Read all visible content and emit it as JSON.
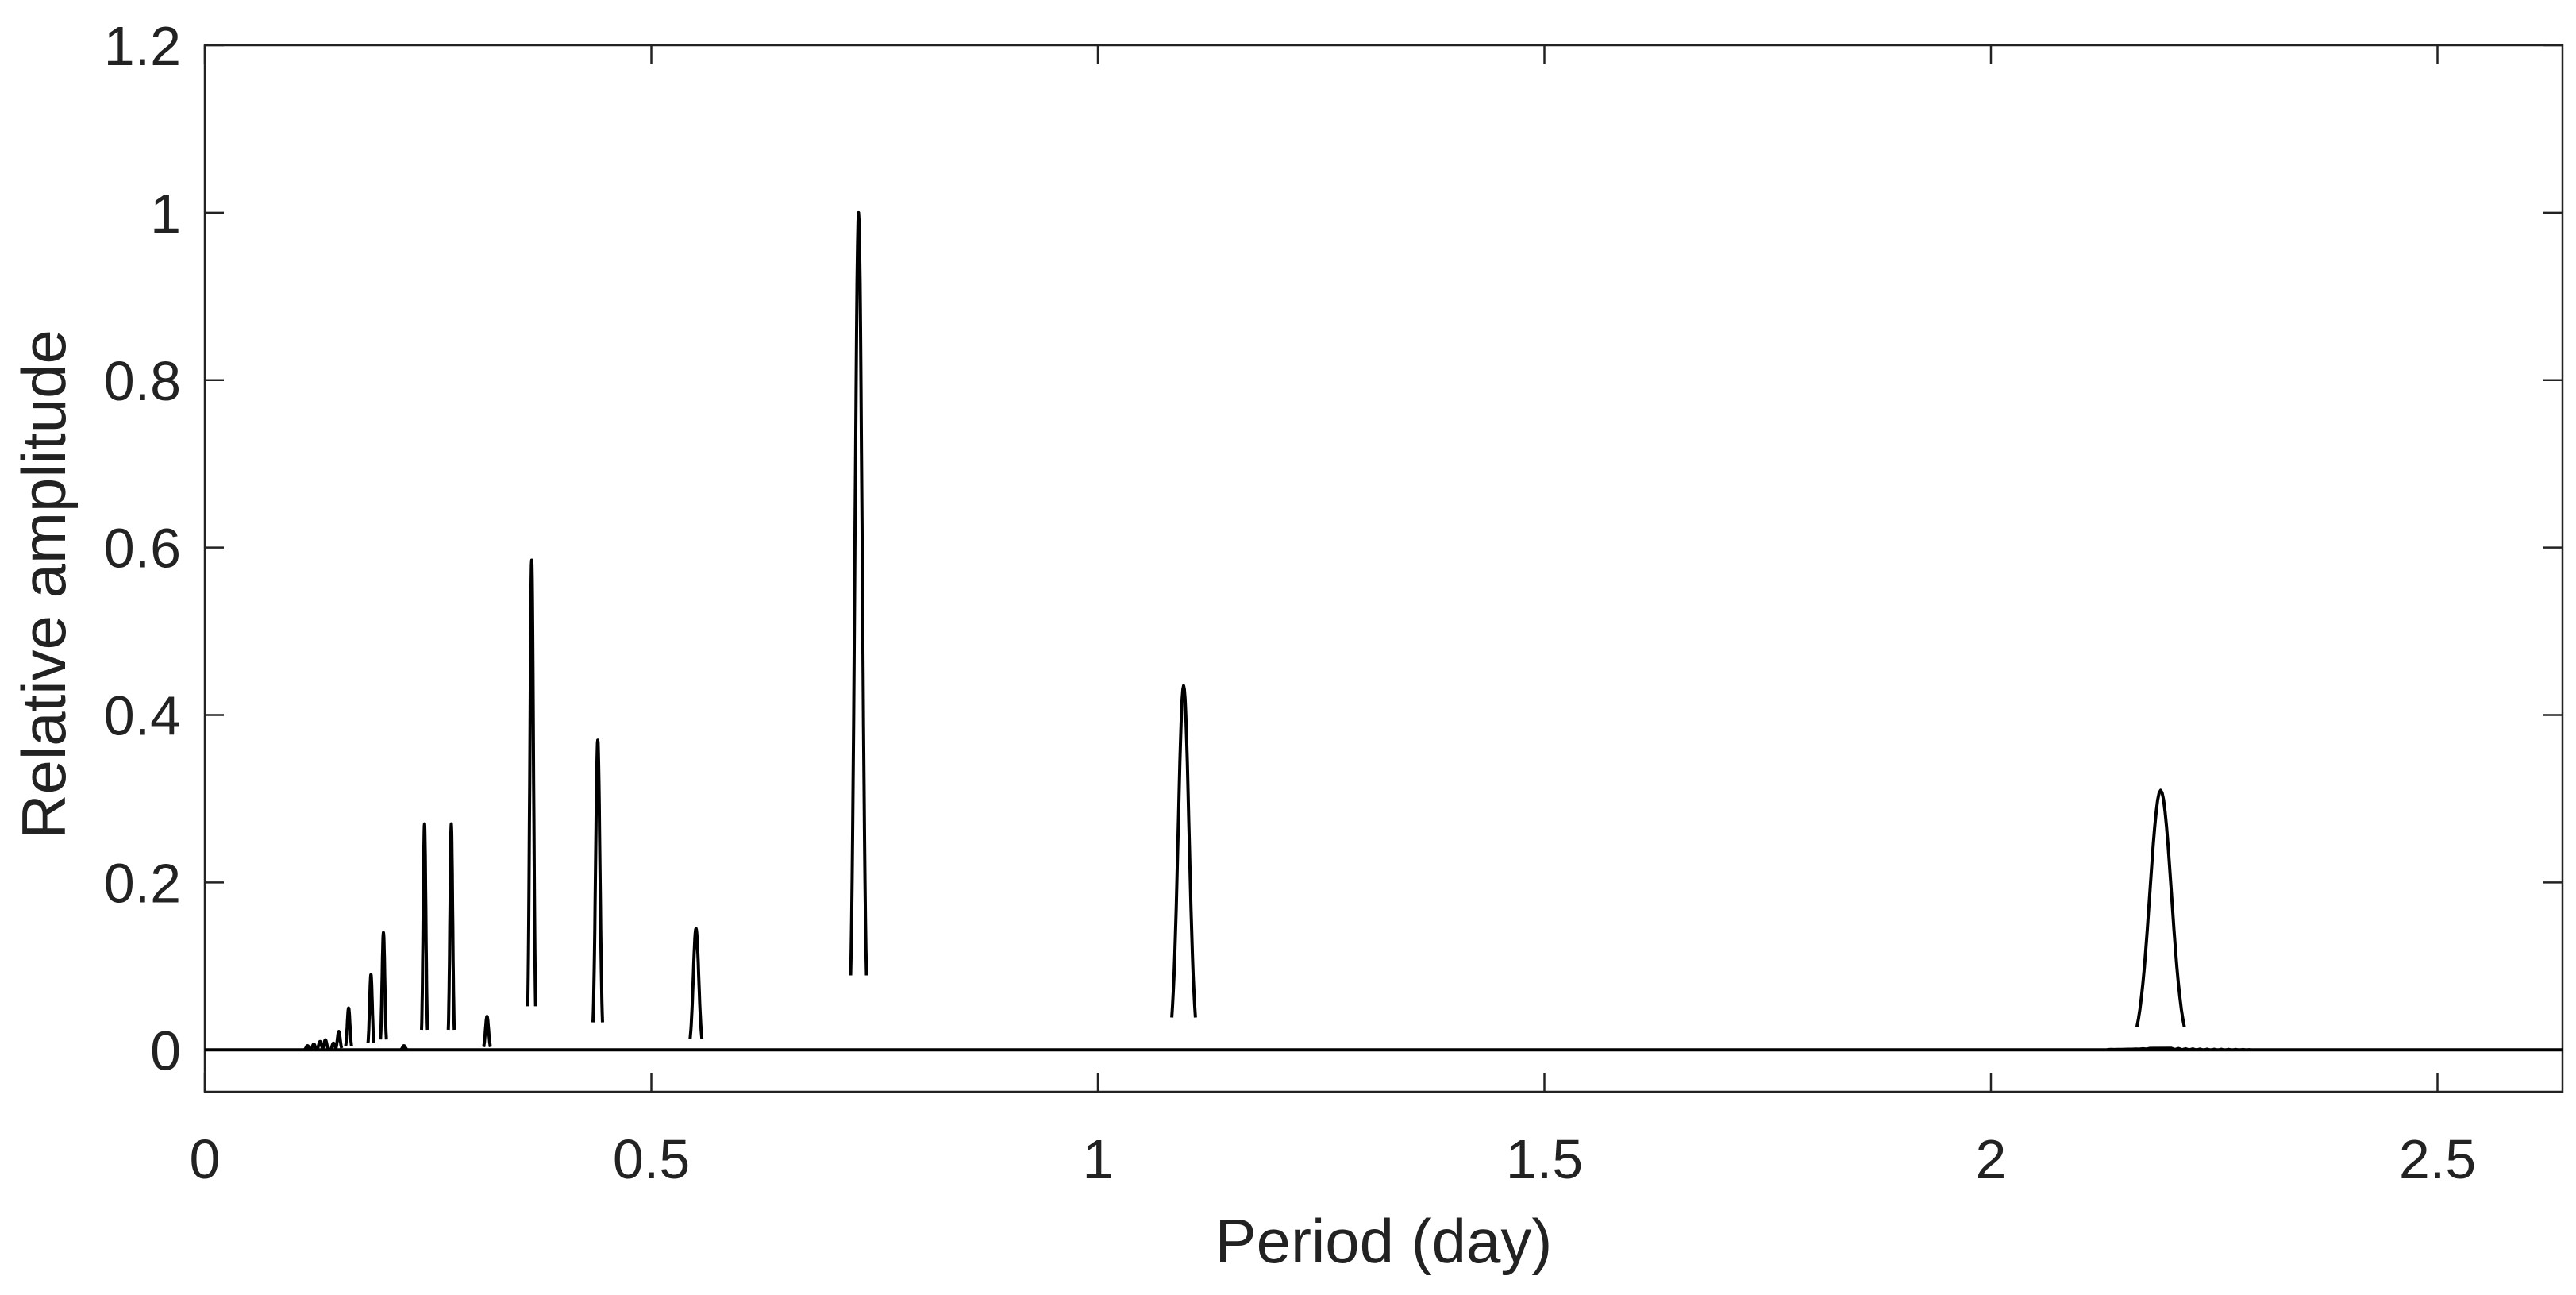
{
  "chart_data": {
    "type": "line",
    "title": "",
    "xlabel": "Period (day)",
    "ylabel": "Relative  amplitude",
    "xlim": [
      0,
      2.64
    ],
    "ylim": [
      -0.05,
      1.2
    ],
    "x_ticks": [
      {
        "value": 0,
        "label": "0"
      },
      {
        "value": 0.5,
        "label": "0.5"
      },
      {
        "value": 1,
        "label": "1"
      },
      {
        "value": 1.5,
        "label": "1.5"
      },
      {
        "value": 2,
        "label": "2"
      },
      {
        "value": 2.5,
        "label": "2.5"
      }
    ],
    "y_ticks": [
      {
        "value": 0,
        "label": "0"
      },
      {
        "value": 0.2,
        "label": "0.2"
      },
      {
        "value": 0.4,
        "label": "0.4"
      },
      {
        "value": 0.6,
        "label": "0.6"
      },
      {
        "value": 0.8,
        "label": "0.8"
      },
      {
        "value": 1,
        "label": "1"
      },
      {
        "value": 1.2,
        "label": "1.2"
      }
    ],
    "grid": false,
    "legend": "none",
    "line_color": "#000000",
    "series": [
      {
        "peaks": [
          {
            "x": 0.115,
            "y": 0.005
          },
          {
            "x": 0.122,
            "y": 0.007
          },
          {
            "x": 0.129,
            "y": 0.01
          },
          {
            "x": 0.135,
            "y": 0.012
          },
          {
            "x": 0.144,
            "y": 0.008
          },
          {
            "x": 0.15,
            "y": 0.022
          },
          {
            "x": 0.161,
            "y": 0.05
          },
          {
            "x": 0.186,
            "y": 0.09
          },
          {
            "x": 0.2,
            "y": 0.14
          },
          {
            "x": 0.223,
            "y": 0.005
          },
          {
            "x": 0.246,
            "y": 0.27
          },
          {
            "x": 0.276,
            "y": 0.27
          },
          {
            "x": 0.316,
            "y": 0.04
          },
          {
            "x": 0.366,
            "y": 0.585
          },
          {
            "x": 0.44,
            "y": 0.37
          },
          {
            "x": 0.55,
            "y": 0.145
          },
          {
            "x": 0.732,
            "y": 1.0
          },
          {
            "x": 1.096,
            "y": 0.435
          },
          {
            "x": 2.19,
            "y": 0.31
          }
        ]
      }
    ]
  }
}
